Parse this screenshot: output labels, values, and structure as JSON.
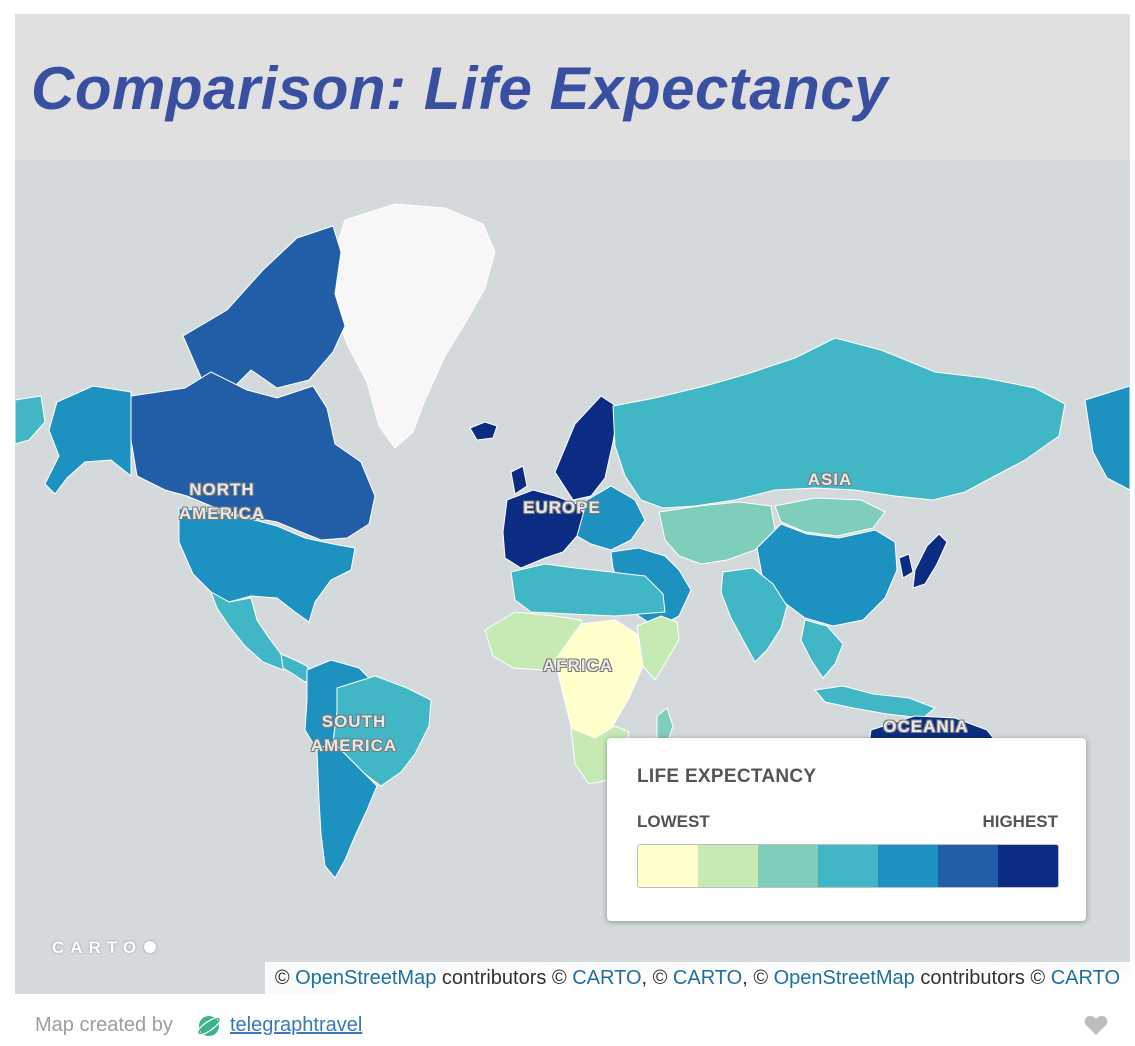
{
  "title": "Comparison: Life Expectancy",
  "colors": {
    "title": "#3b4fa0",
    "ocean": "#d4dadc",
    "land_no_data": "#f7f7f7"
  },
  "map": {
    "region_labels": {
      "north_america": "NORTH\nAMERICA",
      "europe": "EUROPE",
      "asia": "ASIA",
      "africa": "AFRICA",
      "south_america": "SOUTH\nAMERICA",
      "oceania": "OCEANIA"
    },
    "life_expectancy_class": {
      "canada": 6,
      "alaska_usa": 5,
      "usa": 5,
      "mexico": 4,
      "central_america": 4,
      "brazil": 4,
      "andean_countries": 5,
      "argentina_chile": 5,
      "western_europe": 7,
      "scandinavia": 7,
      "eastern_europe": 5,
      "russia": 4,
      "central_asia": 3,
      "mongolia": 3,
      "china": 5,
      "japan": 7,
      "south_korea": 7,
      "middle_east": 5,
      "india": 4,
      "southeast_asia": 4,
      "north_africa": 4,
      "west_africa": 2,
      "central_africa": 1,
      "east_africa": 2,
      "southern_africa": 2,
      "madagascar": 3,
      "australia": 7,
      "greenland": 0
    },
    "logo_text": "CARTO"
  },
  "legend": {
    "title": "LIFE EXPECTANCY",
    "low_label": "LOWEST",
    "high_label": "HIGHEST",
    "colors": [
      "#ffffcc",
      "#c7e9b4",
      "#7fcdbb",
      "#41b6c4",
      "#1d91c0",
      "#225ea8",
      "#0c2c84"
    ]
  },
  "attribution": {
    "parts": [
      {
        "text": "© ",
        "link": false
      },
      {
        "text": "OpenStreetMap",
        "link": true
      },
      {
        "text": " contributors © ",
        "link": false
      },
      {
        "text": "CARTO",
        "link": true
      },
      {
        "text": ", © ",
        "link": false
      },
      {
        "text": "CARTO",
        "link": true
      },
      {
        "text": ", © ",
        "link": false
      },
      {
        "text": "OpenStreetMap",
        "link": true
      },
      {
        "text": " contributors © ",
        "link": false
      },
      {
        "text": "CARTO",
        "link": true
      }
    ]
  },
  "footer": {
    "prefix": "Map created by",
    "user": "telegraphtravel",
    "icon": "planet-icon",
    "like_icon": "heart-icon"
  }
}
